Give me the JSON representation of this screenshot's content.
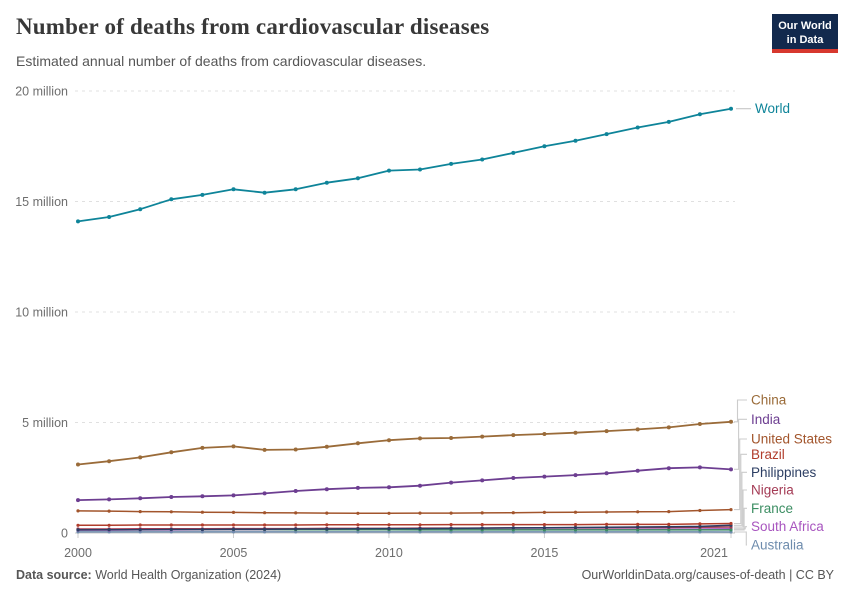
{
  "header": {
    "title": "Number of deaths from cardiovascular diseases",
    "subtitle": "Estimated annual number of deaths from cardiovascular diseases.",
    "logo": {
      "line1": "Our World",
      "line2": "in Data"
    }
  },
  "footer": {
    "datasource_label": "Data source:",
    "datasource_value": " World Health Organization (2024)",
    "credit": "OurWorldinData.org/causes-of-death | CC BY"
  },
  "colors": {
    "logo_bg": "#12294D",
    "logo_accent": "#D7382E",
    "grid": "#E0E0E0",
    "zero_line": "#C8C8C8",
    "axis_text": "#6E6E6E",
    "connector": "#CCCCCC"
  },
  "chart_data": {
    "type": "line",
    "title": "Number of deaths from cardiovascular diseases",
    "unit": "deaths (millions)",
    "grid": "horizontal dashed",
    "legend_position": "labels at right end of lines",
    "ylim": [
      0,
      20
    ],
    "x": [
      2000,
      2001,
      2002,
      2003,
      2004,
      2005,
      2006,
      2007,
      2008,
      2009,
      2010,
      2011,
      2012,
      2013,
      2014,
      2015,
      2016,
      2017,
      2018,
      2019,
      2020,
      2021
    ],
    "x_ticks": [
      2000,
      2005,
      2010,
      2015,
      2021
    ],
    "y_ticks": [
      {
        "value": 0,
        "label": "0"
      },
      {
        "value": 5,
        "label": "5 million"
      },
      {
        "value": 10,
        "label": "10 million"
      },
      {
        "value": 15,
        "label": "15 million"
      },
      {
        "value": 20,
        "label": "20 million"
      }
    ],
    "series": [
      {
        "name": "World",
        "color": "#0E8499",
        "values": [
          14.1,
          14.3,
          14.65,
          15.1,
          15.3,
          15.55,
          15.4,
          15.55,
          15.85,
          16.05,
          16.4,
          16.45,
          16.7,
          16.9,
          17.2,
          17.5,
          17.75,
          18.05,
          18.35,
          18.6,
          18.95,
          19.2
        ]
      },
      {
        "name": "China",
        "color": "#9A6B39",
        "values": [
          3.1,
          3.25,
          3.42,
          3.65,
          3.85,
          3.92,
          3.76,
          3.78,
          3.9,
          4.06,
          4.2,
          4.28,
          4.3,
          4.36,
          4.43,
          4.48,
          4.54,
          4.61,
          4.69,
          4.78,
          4.93,
          5.03
        ]
      },
      {
        "name": "India",
        "color": "#6D3E91",
        "values": [
          1.49,
          1.52,
          1.57,
          1.63,
          1.66,
          1.7,
          1.79,
          1.9,
          1.98,
          2.04,
          2.07,
          2.14,
          2.28,
          2.38,
          2.49,
          2.55,
          2.62,
          2.7,
          2.82,
          2.93,
          2.97,
          2.88
        ]
      },
      {
        "name": "United States",
        "color": "#A2552C",
        "values": [
          1.0,
          0.99,
          0.97,
          0.96,
          0.94,
          0.93,
          0.92,
          0.91,
          0.9,
          0.89,
          0.89,
          0.9,
          0.9,
          0.91,
          0.92,
          0.93,
          0.94,
          0.95,
          0.96,
          0.97,
          1.02,
          1.06
        ]
      },
      {
        "name": "Brazil",
        "color": "#B13D2C",
        "values": [
          0.35,
          0.35,
          0.36,
          0.36,
          0.36,
          0.36,
          0.36,
          0.36,
          0.37,
          0.37,
          0.37,
          0.37,
          0.38,
          0.38,
          0.38,
          0.38,
          0.38,
          0.39,
          0.39,
          0.39,
          0.41,
          0.43
        ]
      },
      {
        "name": "Philippines",
        "color": "#2C3E63",
        "values": [
          0.14,
          0.15,
          0.15,
          0.16,
          0.16,
          0.17,
          0.17,
          0.18,
          0.18,
          0.19,
          0.2,
          0.2,
          0.21,
          0.22,
          0.23,
          0.24,
          0.25,
          0.26,
          0.27,
          0.28,
          0.3,
          0.35
        ]
      },
      {
        "name": "Nigeria",
        "color": "#A43B55",
        "values": [
          0.18,
          0.18,
          0.19,
          0.19,
          0.19,
          0.2,
          0.2,
          0.2,
          0.21,
          0.21,
          0.21,
          0.22,
          0.22,
          0.22,
          0.23,
          0.23,
          0.24,
          0.24,
          0.25,
          0.25,
          0.26,
          0.27
        ]
      },
      {
        "name": "France",
        "color": "#3C8E63",
        "values": [
          0.17,
          0.17,
          0.17,
          0.17,
          0.16,
          0.16,
          0.16,
          0.15,
          0.15,
          0.15,
          0.15,
          0.14,
          0.14,
          0.14,
          0.14,
          0.14,
          0.14,
          0.14,
          0.14,
          0.14,
          0.14,
          0.14
        ]
      },
      {
        "name": "South Africa",
        "color": "#A855BF",
        "values": [
          0.13,
          0.13,
          0.14,
          0.14,
          0.15,
          0.15,
          0.15,
          0.15,
          0.15,
          0.15,
          0.15,
          0.15,
          0.15,
          0.15,
          0.16,
          0.16,
          0.16,
          0.16,
          0.17,
          0.17,
          0.18,
          0.19
        ]
      },
      {
        "name": "Australia",
        "color": "#6E8CAD",
        "values": [
          0.05,
          0.05,
          0.05,
          0.05,
          0.05,
          0.05,
          0.05,
          0.05,
          0.05,
          0.05,
          0.05,
          0.05,
          0.05,
          0.05,
          0.05,
          0.05,
          0.05,
          0.05,
          0.05,
          0.05,
          0.05,
          0.045
        ]
      }
    ]
  }
}
